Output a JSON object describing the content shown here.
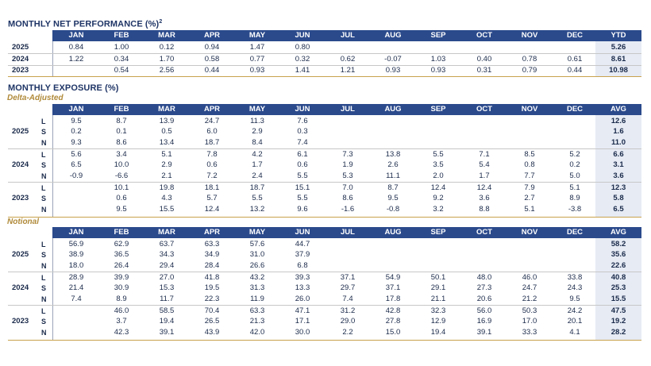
{
  "months": [
    "JAN",
    "FEB",
    "MAR",
    "APR",
    "MAY",
    "JUN",
    "JUL",
    "AUG",
    "SEP",
    "OCT",
    "NOV",
    "DEC"
  ],
  "perf": {
    "title": "MONTHLY NET PERFORMANCE (%)",
    "title_sup": "2",
    "total_label": "YTD",
    "rows": [
      {
        "year": "2025",
        "values": [
          "0.84",
          "1.00",
          "0.12",
          "0.94",
          "1.47",
          "0.80",
          "",
          "",
          "",
          "",
          "",
          ""
        ],
        "total": "5.26"
      },
      {
        "year": "2024",
        "values": [
          "1.22",
          "0.34",
          "1.70",
          "0.58",
          "0.77",
          "0.32",
          "0.62",
          "-0.07",
          "1.03",
          "0.40",
          "0.78",
          "0.61"
        ],
        "total": "8.61"
      },
      {
        "year": "2023",
        "values": [
          "",
          "0.54",
          "2.56",
          "0.44",
          "0.93",
          "1.41",
          "1.21",
          "0.93",
          "0.93",
          "0.31",
          "0.79",
          "0.44"
        ],
        "total": "10.98"
      }
    ]
  },
  "exposure": {
    "title": "MONTHLY EXPOSURE (%)",
    "delta_label": "Delta-Adjusted",
    "notional_label": "Notional",
    "total_label": "AVG",
    "delta": [
      {
        "year": "2025",
        "rows": [
          {
            "k": "L",
            "values": [
              "9.5",
              "8.7",
              "13.9",
              "24.7",
              "11.3",
              "7.6",
              "",
              "",
              "",
              "",
              "",
              ""
            ],
            "total": "12.6"
          },
          {
            "k": "S",
            "values": [
              "0.2",
              "0.1",
              "0.5",
              "6.0",
              "2.9",
              "0.3",
              "",
              "",
              "",
              "",
              "",
              ""
            ],
            "total": "1.6"
          },
          {
            "k": "N",
            "values": [
              "9.3",
              "8.6",
              "13.4",
              "18.7",
              "8.4",
              "7.4",
              "",
              "",
              "",
              "",
              "",
              ""
            ],
            "total": "11.0"
          }
        ]
      },
      {
        "year": "2024",
        "rows": [
          {
            "k": "L",
            "values": [
              "5.6",
              "3.4",
              "5.1",
              "7.8",
              "4.2",
              "6.1",
              "7.3",
              "13.8",
              "5.5",
              "7.1",
              "8.5",
              "5.2"
            ],
            "total": "6.6"
          },
          {
            "k": "S",
            "values": [
              "6.5",
              "10.0",
              "2.9",
              "0.6",
              "1.7",
              "0.6",
              "1.9",
              "2.6",
              "3.5",
              "5.4",
              "0.8",
              "0.2"
            ],
            "total": "3.1"
          },
          {
            "k": "N",
            "values": [
              "-0.9",
              "-6.6",
              "2.1",
              "7.2",
              "2.4",
              "5.5",
              "5.3",
              "11.1",
              "2.0",
              "1.7",
              "7.7",
              "5.0"
            ],
            "total": "3.6"
          }
        ]
      },
      {
        "year": "2023",
        "rows": [
          {
            "k": "L",
            "values": [
              "",
              "10.1",
              "19.8",
              "18.1",
              "18.7",
              "15.1",
              "7.0",
              "8.7",
              "12.4",
              "12.4",
              "7.9",
              "5.1"
            ],
            "total": "12.3"
          },
          {
            "k": "S",
            "values": [
              "",
              "0.6",
              "4.3",
              "5.7",
              "5.5",
              "5.5",
              "8.6",
              "9.5",
              "9.2",
              "3.6",
              "2.7",
              "8.9"
            ],
            "total": "5.8"
          },
          {
            "k": "N",
            "values": [
              "",
              "9.5",
              "15.5",
              "12.4",
              "13.2",
              "9.6",
              "-1.6",
              "-0.8",
              "3.2",
              "8.8",
              "5.1",
              "-3.8"
            ],
            "total": "6.5"
          }
        ]
      }
    ],
    "notional": [
      {
        "year": "2025",
        "rows": [
          {
            "k": "L",
            "values": [
              "56.9",
              "62.9",
              "63.7",
              "63.3",
              "57.6",
              "44.7",
              "",
              "",
              "",
              "",
              "",
              ""
            ],
            "total": "58.2"
          },
          {
            "k": "S",
            "values": [
              "38.9",
              "36.5",
              "34.3",
              "34.9",
              "31.0",
              "37.9",
              "",
              "",
              "",
              "",
              "",
              ""
            ],
            "total": "35.6"
          },
          {
            "k": "N",
            "values": [
              "18.0",
              "26.4",
              "29.4",
              "28.4",
              "26.6",
              "6.8",
              "",
              "",
              "",
              "",
              "",
              ""
            ],
            "total": "22.6"
          }
        ]
      },
      {
        "year": "2024",
        "rows": [
          {
            "k": "L",
            "values": [
              "28.9",
              "39.9",
              "27.0",
              "41.8",
              "43.2",
              "39.3",
              "37.1",
              "54.9",
              "50.1",
              "48.0",
              "46.0",
              "33.8"
            ],
            "total": "40.8"
          },
          {
            "k": "S",
            "values": [
              "21.4",
              "30.9",
              "15.3",
              "19.5",
              "31.3",
              "13.3",
              "29.7",
              "37.1",
              "29.1",
              "27.3",
              "24.7",
              "24.3"
            ],
            "total": "25.3"
          },
          {
            "k": "N",
            "values": [
              "7.4",
              "8.9",
              "11.7",
              "22.3",
              "11.9",
              "26.0",
              "7.4",
              "17.8",
              "21.1",
              "20.6",
              "21.2",
              "9.5"
            ],
            "total": "15.5"
          }
        ]
      },
      {
        "year": "2023",
        "rows": [
          {
            "k": "L",
            "values": [
              "",
              "46.0",
              "58.5",
              "70.4",
              "63.3",
              "47.1",
              "31.2",
              "42.8",
              "32.3",
              "56.0",
              "50.3",
              "24.2"
            ],
            "total": "47.5"
          },
          {
            "k": "S",
            "values": [
              "",
              "3.7",
              "19.4",
              "26.5",
              "21.3",
              "17.1",
              "29.0",
              "27.8",
              "12.9",
              "16.9",
              "17.0",
              "20.1"
            ],
            "total": "19.2"
          },
          {
            "k": "N",
            "values": [
              "",
              "42.3",
              "39.1",
              "43.9",
              "42.0",
              "30.0",
              "2.2",
              "15.0",
              "19.4",
              "39.1",
              "33.3",
              "4.1"
            ],
            "total": "28.2"
          }
        ]
      }
    ]
  }
}
